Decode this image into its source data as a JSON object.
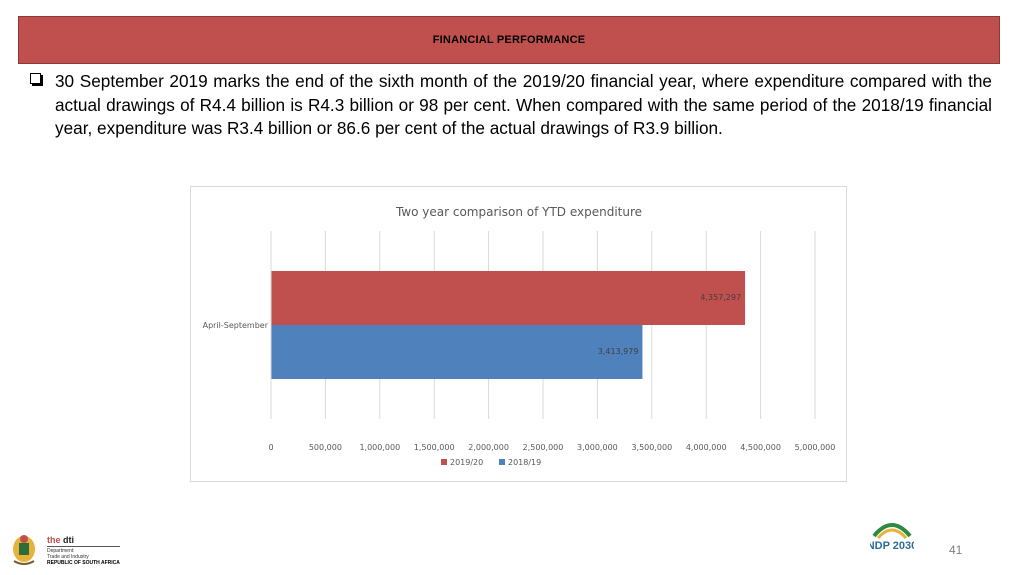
{
  "banner": {
    "title": "FINANCIAL PERFORMANCE"
  },
  "body": {
    "paragraph": "30 September 2019 marks the end of the sixth month of the 2019/20 financial year, where expenditure compared with the actual drawings of R4.4 billion is R4.3 billion or 98 per cent. When compared with the same period of the 2018/19 financial year, expenditure was R3.4 billion or 86.6 per cent of the actual drawings of R3.9 billion."
  },
  "chart_data": {
    "type": "bar",
    "orientation": "horizontal",
    "title": "Two year comparison of YTD expenditure",
    "categories": [
      "April-September"
    ],
    "series": [
      {
        "name": "2019/20",
        "values": [
          4357297
        ],
        "color": "#c0504d"
      },
      {
        "name": "2018/19",
        "values": [
          3413979
        ],
        "color": "#4f81bd"
      }
    ],
    "data_labels": [
      "4,357,297",
      "3,413,979"
    ],
    "xlim": [
      0,
      5000000
    ],
    "x_ticks": [
      0,
      500000,
      1000000,
      1500000,
      2000000,
      2500000,
      3000000,
      3500000,
      4000000,
      4500000,
      5000000
    ],
    "x_tick_labels": [
      "0",
      "500,000",
      "1,000,000",
      "1,500,000",
      "2,000,000",
      "2,500,000",
      "3,000,000",
      "3,500,000",
      "4,000,000",
      "4,500,000",
      "5,000,000"
    ],
    "grid": true,
    "legend": "bottom"
  },
  "footer": {
    "logo_brand_prefix": "the ",
    "logo_brand": "dti",
    "department_line1": "Department:",
    "department_line2": "Trade and Industry",
    "country": "REPUBLIC OF SOUTH AFRICA",
    "ndp_logo_text": "NDP 2030",
    "page_number": "41"
  }
}
